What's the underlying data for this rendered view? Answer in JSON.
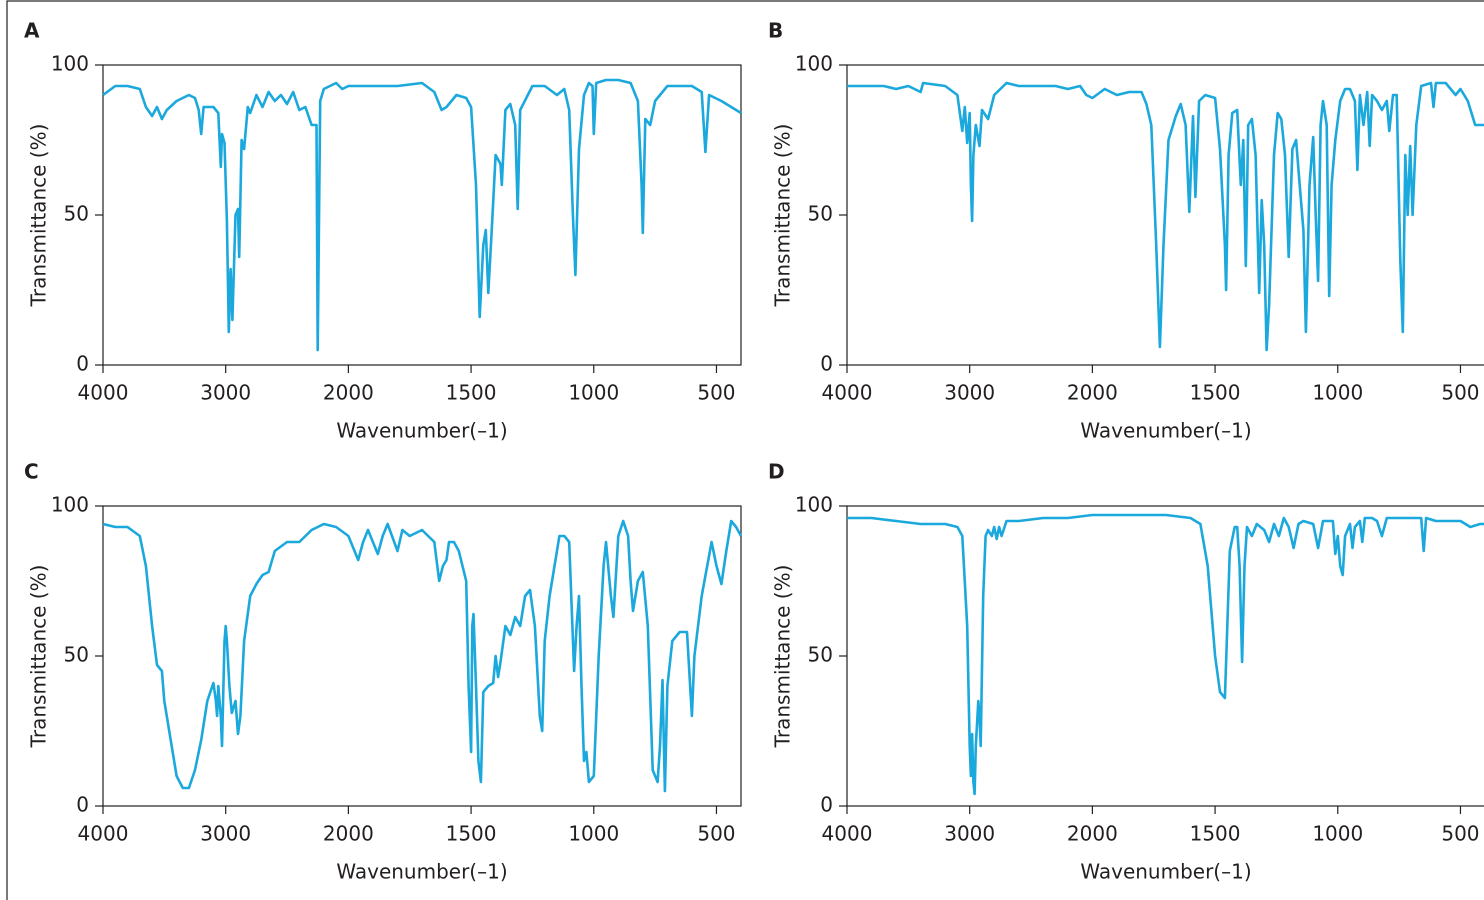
{
  "chart_data": [
    {
      "type": "line",
      "title": "A",
      "xlabel": "Wavenumber(–1)",
      "ylabel": "Transmittance (%)",
      "color": "#1ba8dd",
      "xlim": [
        4000,
        400
      ],
      "ylim": [
        0,
        100
      ],
      "xticks": [
        4000,
        3000,
        2000,
        1500,
        1000,
        500
      ],
      "yticks": [
        0,
        50,
        100
      ],
      "x": [
        4000,
        3900,
        3800,
        3700,
        3650,
        3600,
        3560,
        3520,
        3480,
        3400,
        3300,
        3250,
        3220,
        3200,
        3180,
        3100,
        3060,
        3040,
        3030,
        3010,
        2990,
        2975,
        2960,
        2945,
        2920,
        2900,
        2890,
        2870,
        2850,
        2820,
        2800,
        2750,
        2700,
        2650,
        2600,
        2550,
        2500,
        2450,
        2400,
        2350,
        2300,
        2260,
        2250,
        2230,
        2200,
        2100,
        2050,
        2000,
        1900,
        1800,
        1700,
        1650,
        1620,
        1600,
        1560,
        1520,
        1500,
        1480,
        1465,
        1450,
        1440,
        1430,
        1415,
        1400,
        1380,
        1375,
        1360,
        1340,
        1320,
        1310,
        1300,
        1250,
        1200,
        1150,
        1120,
        1100,
        1085,
        1075,
        1060,
        1040,
        1020,
        1005,
        1000,
        990,
        950,
        900,
        850,
        820,
        805,
        800,
        790,
        770,
        750,
        700,
        600,
        560,
        545,
        530,
        480,
        420,
        400
      ],
      "values": [
        90,
        93,
        93,
        92,
        86,
        83,
        86,
        82,
        85,
        88,
        90,
        89,
        85,
        77,
        86,
        86,
        84,
        66,
        77,
        74,
        48,
        11,
        32,
        15,
        50,
        52,
        36,
        75,
        72,
        86,
        84,
        90,
        86,
        91,
        88,
        90,
        87,
        91,
        85,
        86,
        80,
        80,
        5,
        88,
        92,
        94,
        92,
        93,
        93,
        93,
        94,
        91,
        85,
        86,
        90,
        89,
        86,
        60,
        16,
        40,
        45,
        24,
        46,
        70,
        67,
        60,
        85,
        87,
        80,
        52,
        85,
        93,
        93,
        90,
        92,
        85,
        50,
        30,
        72,
        90,
        94,
        93,
        77,
        94,
        95,
        95,
        94,
        88,
        60,
        44,
        82,
        80,
        88,
        93,
        93,
        91,
        71,
        90,
        88,
        85,
        84
      ]
    },
    {
      "type": "line",
      "title": "B",
      "xlabel": "Wavenumber(–1)",
      "ylabel": "Transmittance (%)",
      "color": "#1ba8dd",
      "xlim": [
        4000,
        400
      ],
      "ylim": [
        0,
        100
      ],
      "xticks": [
        4000,
        3000,
        2000,
        1500,
        1000,
        500
      ],
      "yticks": [
        0,
        50,
        100
      ],
      "x": [
        4000,
        3800,
        3700,
        3600,
        3500,
        3400,
        3380,
        3200,
        3100,
        3060,
        3040,
        3020,
        3000,
        2990,
        2980,
        2970,
        2950,
        2920,
        2900,
        2850,
        2800,
        2700,
        2600,
        2500,
        2400,
        2300,
        2200,
        2100,
        2050,
        2000,
        1950,
        1900,
        1850,
        1800,
        1780,
        1760,
        1740,
        1725,
        1710,
        1690,
        1660,
        1640,
        1620,
        1605,
        1590,
        1580,
        1565,
        1540,
        1500,
        1480,
        1460,
        1455,
        1445,
        1430,
        1410,
        1395,
        1385,
        1375,
        1365,
        1350,
        1335,
        1320,
        1310,
        1300,
        1290,
        1280,
        1260,
        1245,
        1230,
        1215,
        1200,
        1185,
        1170,
        1155,
        1140,
        1130,
        1115,
        1100,
        1090,
        1080,
        1070,
        1060,
        1045,
        1035,
        1025,
        1010,
        990,
        970,
        950,
        930,
        920,
        910,
        895,
        880,
        870,
        860,
        840,
        820,
        800,
        790,
        775,
        760,
        745,
        735,
        725,
        715,
        705,
        695,
        680,
        660,
        620,
        610,
        600,
        560,
        520,
        500,
        470,
        440,
        400
      ],
      "values": [
        93,
        93,
        93,
        92,
        93,
        91,
        94,
        93,
        90,
        78,
        86,
        74,
        84,
        60,
        48,
        70,
        80,
        73,
        85,
        82,
        90,
        94,
        93,
        93,
        93,
        93,
        92,
        93,
        90,
        89,
        92,
        90,
        91,
        91,
        87,
        80,
        40,
        6,
        40,
        75,
        83,
        87,
        80,
        51,
        83,
        56,
        88,
        90,
        89,
        72,
        40,
        25,
        70,
        84,
        85,
        60,
        75,
        33,
        80,
        82,
        70,
        24,
        55,
        40,
        5,
        20,
        70,
        84,
        82,
        70,
        36,
        72,
        75,
        60,
        45,
        11,
        60,
        76,
        50,
        28,
        80,
        88,
        80,
        23,
        60,
        75,
        88,
        92,
        92,
        88,
        65,
        90,
        80,
        91,
        73,
        90,
        88,
        85,
        88,
        78,
        90,
        90,
        35,
        11,
        70,
        50,
        73,
        50,
        80,
        93,
        94,
        86,
        94,
        94,
        90,
        92,
        88,
        80,
        80
      ]
    },
    {
      "type": "line",
      "title": "C",
      "xlabel": "Wavenumber(–1)",
      "ylabel": "Transmittance (%)",
      "color": "#1ba8dd",
      "xlim": [
        4000,
        400
      ],
      "ylim": [
        0,
        100
      ],
      "xticks": [
        4000,
        3000,
        2000,
        1500,
        1000,
        500
      ],
      "yticks": [
        0,
        50,
        100
      ],
      "x": [
        4000,
        3900,
        3800,
        3700,
        3650,
        3600,
        3560,
        3520,
        3500,
        3400,
        3350,
        3300,
        3250,
        3200,
        3150,
        3100,
        3080,
        3070,
        3060,
        3040,
        3030,
        3010,
        3000,
        2990,
        2970,
        2950,
        2920,
        2900,
        2880,
        2850,
        2800,
        2750,
        2700,
        2650,
        2600,
        2500,
        2400,
        2300,
        2200,
        2100,
        2000,
        1960,
        1940,
        1920,
        1880,
        1860,
        1840,
        1800,
        1780,
        1750,
        1700,
        1650,
        1630,
        1615,
        1600,
        1590,
        1570,
        1550,
        1520,
        1510,
        1500,
        1495,
        1490,
        1480,
        1470,
        1460,
        1450,
        1430,
        1410,
        1400,
        1390,
        1380,
        1360,
        1340,
        1320,
        1300,
        1280,
        1260,
        1240,
        1220,
        1210,
        1200,
        1180,
        1160,
        1140,
        1120,
        1100,
        1080,
        1070,
        1060,
        1050,
        1040,
        1030,
        1020,
        1000,
        980,
        960,
        950,
        930,
        920,
        900,
        880,
        860,
        850,
        840,
        820,
        800,
        780,
        760,
        740,
        730,
        720,
        710,
        700,
        680,
        650,
        620,
        600,
        590,
        560,
        520,
        500,
        480,
        460,
        440,
        420,
        400
      ],
      "values": [
        94,
        93,
        93,
        90,
        80,
        60,
        47,
        45,
        35,
        10,
        6,
        6,
        12,
        22,
        35,
        41,
        35,
        30,
        40,
        30,
        20,
        55,
        60,
        55,
        40,
        31,
        35,
        24,
        30,
        55,
        70,
        74,
        77,
        78,
        85,
        88,
        88,
        92,
        94,
        93,
        90,
        82,
        88,
        92,
        84,
        90,
        94,
        85,
        92,
        90,
        92,
        88,
        75,
        80,
        82,
        88,
        88,
        85,
        75,
        40,
        18,
        60,
        64,
        40,
        15,
        8,
        38,
        40,
        41,
        50,
        43,
        48,
        60,
        57,
        63,
        60,
        70,
        72,
        60,
        30,
        25,
        55,
        70,
        80,
        90,
        90,
        88,
        45,
        60,
        70,
        40,
        15,
        18,
        8,
        10,
        50,
        80,
        88,
        70,
        63,
        90,
        95,
        90,
        75,
        65,
        75,
        78,
        60,
        12,
        8,
        20,
        42,
        5,
        40,
        55,
        58,
        58,
        30,
        50,
        70,
        88,
        80,
        74,
        85,
        95,
        93,
        90
      ]
    },
    {
      "type": "line",
      "title": "D",
      "xlabel": "Wavenumber(–1)",
      "ylabel": "Transmittance (%)",
      "color": "#1ba8dd",
      "xlim": [
        4000,
        400
      ],
      "ylim": [
        0,
        100
      ],
      "xticks": [
        4000,
        3000,
        2000,
        1500,
        1000,
        500
      ],
      "yticks": [
        0,
        50,
        100
      ],
      "x": [
        4000,
        3900,
        3800,
        3600,
        3400,
        3200,
        3100,
        3060,
        3020,
        3000,
        2990,
        2980,
        2970,
        2960,
        2950,
        2930,
        2920,
        2910,
        2890,
        2870,
        2850,
        2820,
        2800,
        2780,
        2760,
        2740,
        2700,
        2600,
        2400,
        2200,
        2000,
        1800,
        1700,
        1600,
        1560,
        1530,
        1500,
        1480,
        1460,
        1450,
        1440,
        1420,
        1410,
        1400,
        1390,
        1380,
        1370,
        1350,
        1330,
        1300,
        1280,
        1260,
        1240,
        1220,
        1200,
        1180,
        1160,
        1140,
        1100,
        1080,
        1060,
        1020,
        1010,
        1000,
        990,
        980,
        970,
        950,
        940,
        930,
        910,
        900,
        890,
        860,
        840,
        820,
        800,
        700,
        660,
        650,
        640,
        600,
        500,
        460,
        420,
        400
      ],
      "values": [
        96,
        96,
        96,
        95,
        94,
        94,
        93,
        90,
        60,
        20,
        10,
        24,
        8,
        4,
        20,
        35,
        30,
        20,
        70,
        90,
        92,
        90,
        93,
        89,
        93,
        90,
        95,
        95,
        96,
        96,
        97,
        97,
        97,
        96,
        94,
        80,
        50,
        38,
        36,
        60,
        85,
        93,
        93,
        80,
        48,
        80,
        93,
        90,
        94,
        92,
        88,
        94,
        90,
        96,
        93,
        86,
        94,
        95,
        94,
        86,
        95,
        95,
        84,
        90,
        80,
        77,
        90,
        94,
        86,
        93,
        95,
        88,
        96,
        96,
        95,
        90,
        96,
        96,
        96,
        85,
        96,
        95,
        95,
        93,
        94,
        94
      ]
    }
  ]
}
